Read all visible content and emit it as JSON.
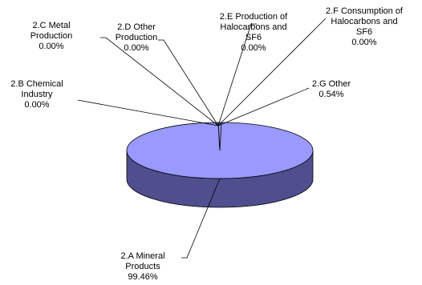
{
  "chart_data": {
    "type": "pie",
    "style": "3d",
    "title": "",
    "categories": [
      "2.A Mineral Products",
      "2.B Chemical Industry",
      "2.C Metal Production",
      "2.D Other Production",
      "2.E Production of Halocarbons and SF6",
      "2.F Consumption of Halocarbons and SF6",
      "2.G Other"
    ],
    "values": [
      99.46,
      0.0,
      0.0,
      0.0,
      0.0,
      0.0,
      0.54
    ],
    "value_labels": [
      "99.46%",
      "0.00%",
      "0.00%",
      "0.00%",
      "0.00%",
      "0.00%",
      "0.54%"
    ],
    "colors": {
      "pie_top": "#9999ff",
      "pie_side": "#4f4f8f",
      "outline": "#000000"
    },
    "legend": "none"
  }
}
